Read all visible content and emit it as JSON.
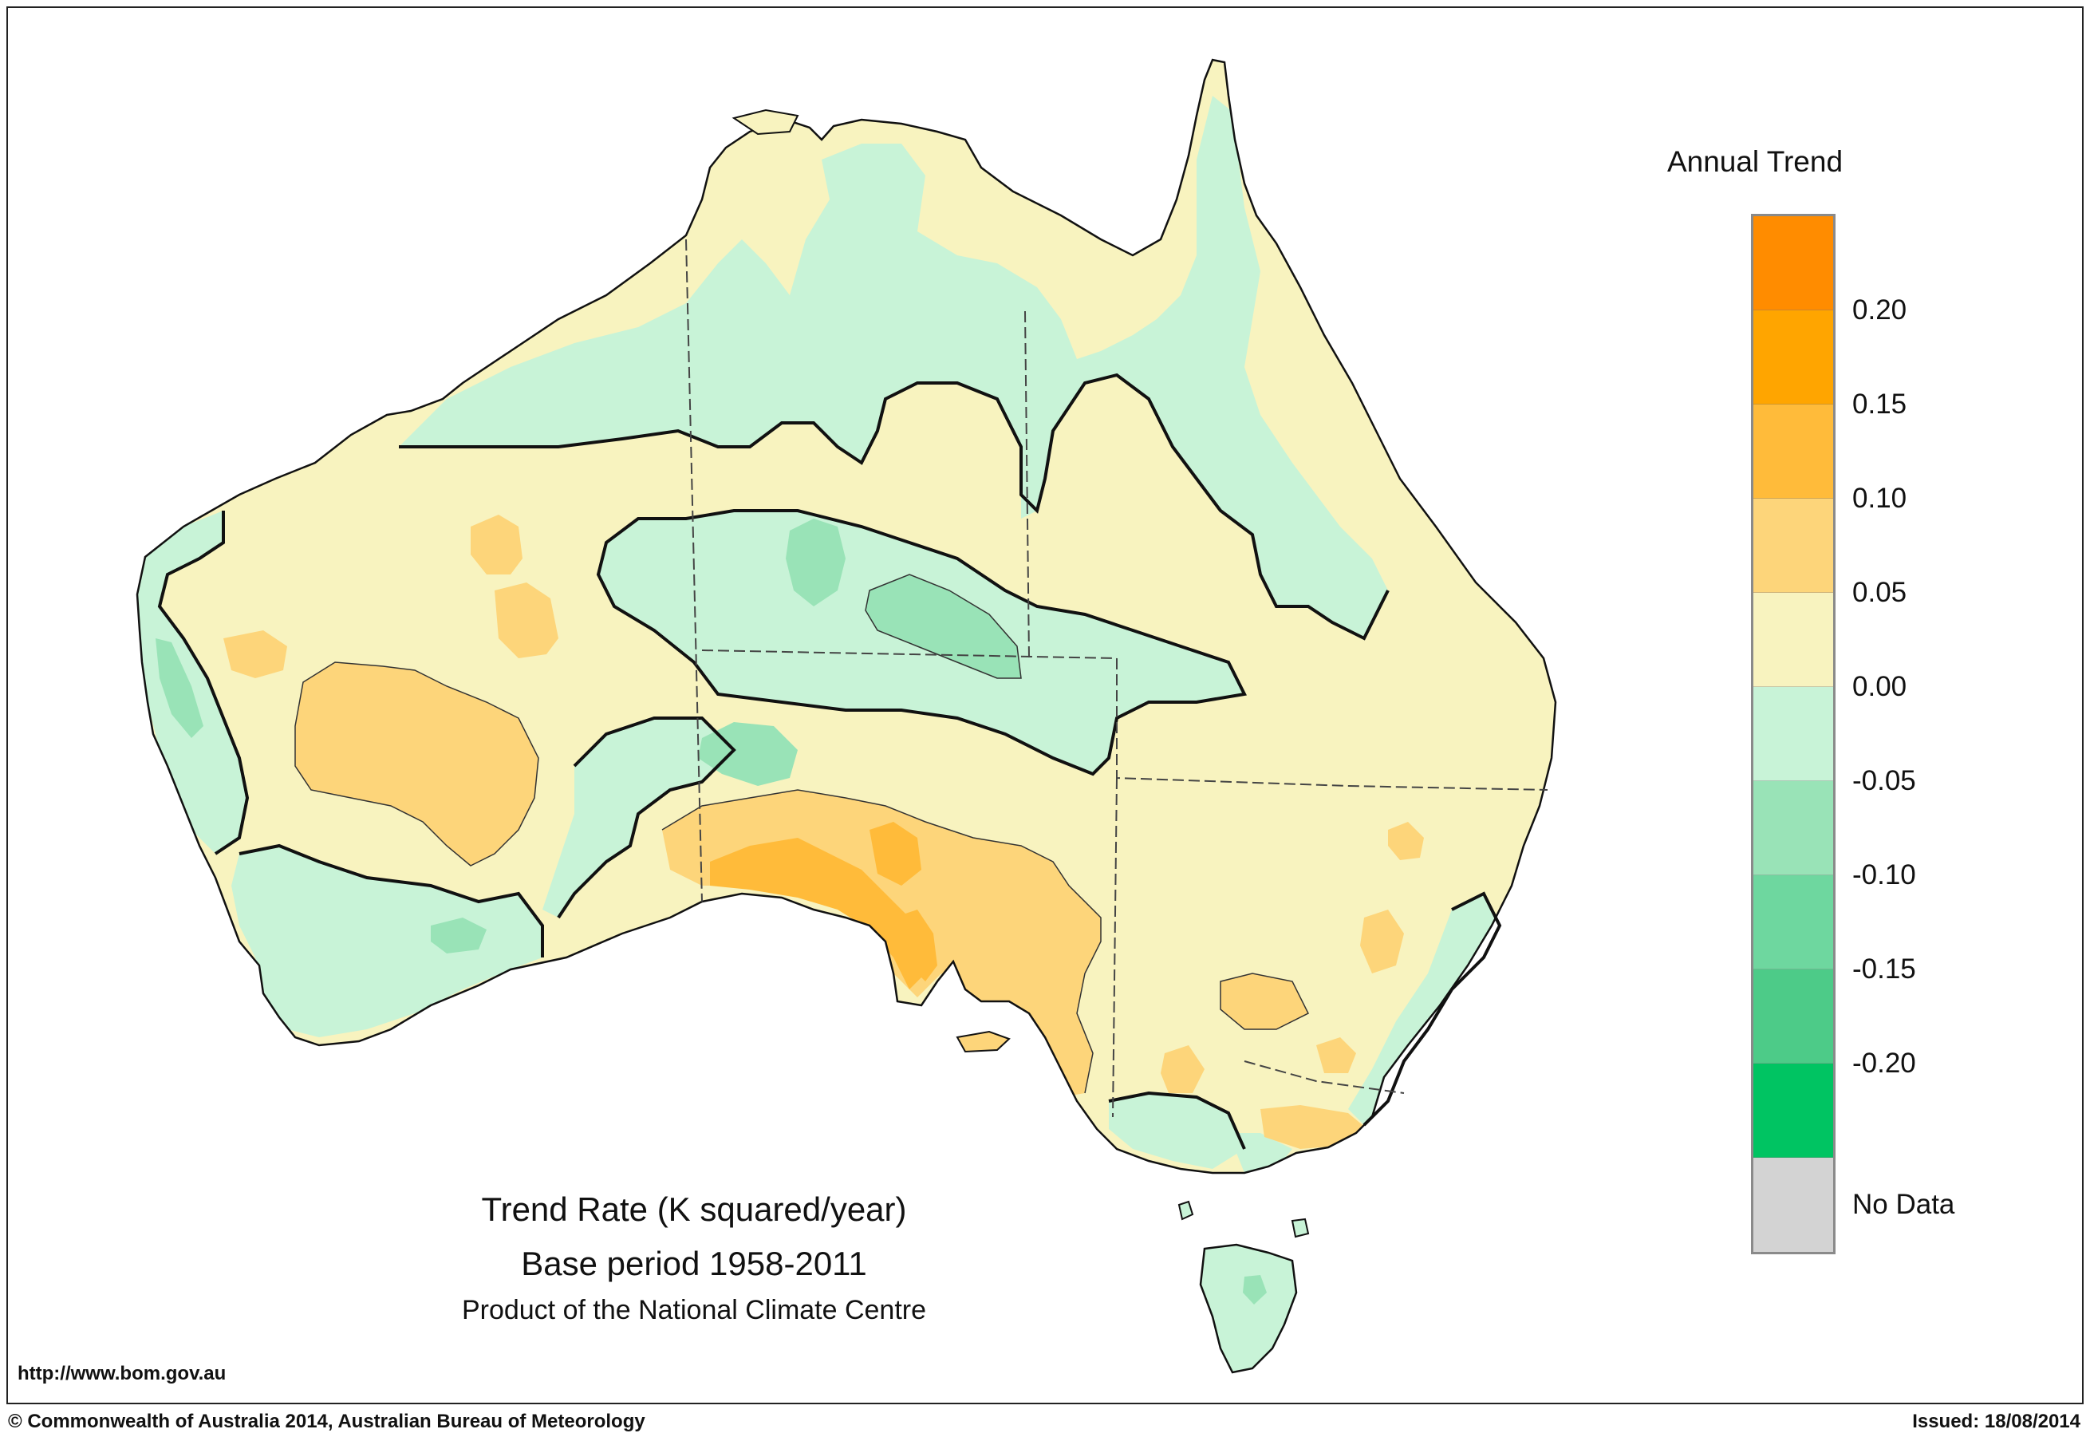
{
  "map": {
    "region": "Australia",
    "layers": [
      "annual trend shading",
      "zero contour",
      "state boundaries"
    ],
    "shaded_categories_present": [
      "-0.10",
      "-0.05",
      "0.00",
      "0.05",
      "0.10",
      "0.15"
    ]
  },
  "legend": {
    "title": "Annual Trend",
    "colors": [
      "#ff8c00",
      "#ffa500",
      "#ffbb3a",
      "#fdd57a",
      "#f8f3bf",
      "#c8f3d7",
      "#99e3b7",
      "#6ed79f",
      "#4dcb88",
      "#00c462",
      "#d3d3d3"
    ],
    "tick_labels": [
      "0.20",
      "0.15",
      "0.10",
      "0.05",
      "0.00",
      "-0.05",
      "-0.10",
      "-0.15",
      "-0.20"
    ],
    "no_data_label": "No Data"
  },
  "caption": {
    "trend_rate": "Trend Rate (K squared/year)",
    "base_period": "Base period 1958-2011",
    "product": "Product of the National Climate Centre"
  },
  "footer": {
    "url": "http://www.bom.gov.au",
    "copyright": "© Commonwealth of Australia 2014, Australian Bureau of Meteorology",
    "issued": "Issued: 18/08/2014"
  }
}
